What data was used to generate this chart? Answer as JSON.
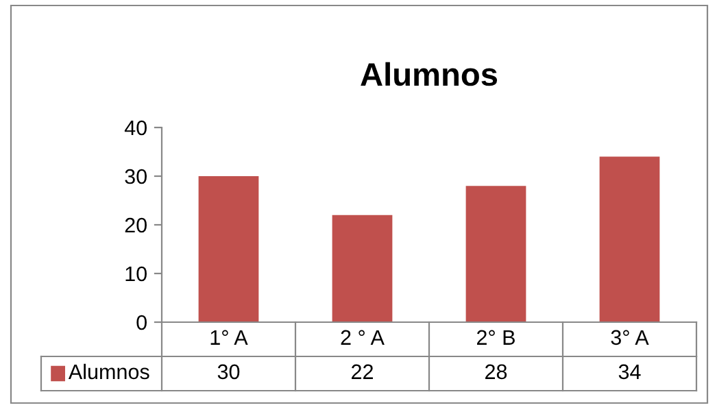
{
  "chart_data": {
    "type": "bar",
    "title": "Alumnos",
    "categories": [
      "1° A",
      "2 ° A",
      "2° B",
      "3° A"
    ],
    "series": [
      {
        "name": "Alumnos",
        "color": "#c0504d",
        "values": [
          30,
          22,
          28,
          34
        ]
      }
    ],
    "ylim": [
      0,
      40
    ],
    "yticks": [
      0,
      10,
      20,
      30,
      40
    ],
    "grid": false,
    "data_labels": true,
    "legend": "bottom"
  }
}
